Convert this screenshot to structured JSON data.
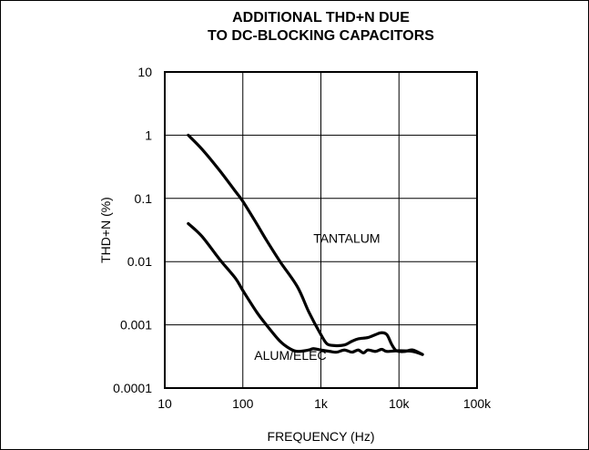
{
  "chart_data": {
    "type": "line",
    "title_lines": [
      "ADDITIONAL THD+N DUE",
      "TO DC-BLOCKING CAPACITORS"
    ],
    "xlabel": "FREQUENCY (Hz)",
    "ylabel": "THD+N (%)",
    "x_scale": "log",
    "y_scale": "log",
    "xlim": [
      10,
      100000
    ],
    "ylim": [
      0.0001,
      10
    ],
    "x_ticks": [
      {
        "value": 10,
        "label": "10"
      },
      {
        "value": 100,
        "label": "100"
      },
      {
        "value": 1000,
        "label": "1k"
      },
      {
        "value": 10000,
        "label": "10k"
      },
      {
        "value": 100000,
        "label": "100k"
      }
    ],
    "y_ticks": [
      {
        "value": 10,
        "label": "10"
      },
      {
        "value": 1,
        "label": "1"
      },
      {
        "value": 0.1,
        "label": "0.1"
      },
      {
        "value": 0.01,
        "label": "0.01"
      },
      {
        "value": 0.001,
        "label": "0.001"
      },
      {
        "value": 0.0001,
        "label": "0.0001"
      }
    ],
    "grid": true,
    "series": [
      {
        "name": "TANTALUM",
        "x": [
          20,
          30,
          50,
          80,
          100,
          150,
          200,
          300,
          500,
          700,
          1000,
          1200,
          1500,
          2000,
          2500,
          3000,
          4000,
          5000,
          6000,
          7000,
          8000,
          9000,
          10000,
          12000,
          15000,
          20000
        ],
        "y": [
          1.0,
          0.6,
          0.28,
          0.13,
          0.09,
          0.04,
          0.022,
          0.01,
          0.004,
          0.0016,
          0.0007,
          0.0005,
          0.00047,
          0.00048,
          0.00055,
          0.0006,
          0.00063,
          0.0007,
          0.00075,
          0.0007,
          0.0005,
          0.0004,
          0.00038,
          0.00038,
          0.0004,
          0.00034
        ]
      },
      {
        "name": "ALUM/ELEC",
        "x": [
          20,
          30,
          50,
          80,
          100,
          150,
          200,
          300,
          400,
          500,
          700,
          800,
          1000,
          1300,
          1600,
          2000,
          2500,
          3000,
          3500,
          4000,
          5000,
          6000,
          7000,
          10000,
          15000,
          20000
        ],
        "y": [
          0.04,
          0.025,
          0.011,
          0.0055,
          0.0035,
          0.0016,
          0.001,
          0.00055,
          0.00042,
          0.00038,
          0.0004,
          0.00042,
          0.0004,
          0.00038,
          0.00037,
          0.0004,
          0.00037,
          0.0004,
          0.00036,
          0.0004,
          0.00038,
          0.00041,
          0.00038,
          0.00039,
          0.00038,
          0.00034
        ]
      }
    ],
    "annotations": [
      {
        "text": "TANTALUM",
        "x": 800,
        "y": 0.02
      },
      {
        "text": "ALUM/ELEC",
        "x": 140,
        "y": 0.00028
      }
    ]
  }
}
